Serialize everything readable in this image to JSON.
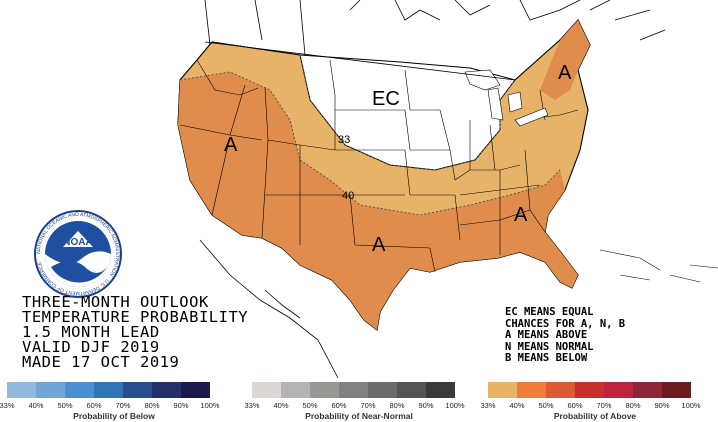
{
  "map": {
    "labels": {
      "ec": "EC",
      "a_west": "A",
      "a_southwest": "A",
      "a_southeast": "A",
      "a_northeast": "A",
      "contour_33": "33",
      "contour_40": "40"
    },
    "colors": {
      "prob_33_40": "#e6b368",
      "prob_40_50": "#e08c4c",
      "land": "#ffffff",
      "border": "#000000"
    }
  },
  "title_block": {
    "lines": [
      "THREE-MONTH OUTLOOK",
      "TEMPERATURE PROBABILITY",
      "1.5 MONTH LEAD",
      "VALID DJF 2019",
      "MADE 17 OCT 2019"
    ]
  },
  "key_block": {
    "lines": [
      "EC MEANS EQUAL",
      "CHANCES FOR A, N, B",
      "A MEANS ABOVE",
      "N MEANS NORMAL",
      "B MEANS BELOW"
    ]
  },
  "logo": {
    "text": "NOAA",
    "ring_text": "NATIONAL OCEANIC AND ATMOSPHERIC ADMINISTRATION · U.S. DEPARTMENT OF COMMERCE"
  },
  "legend": {
    "below": {
      "caption": "Probability of Below",
      "ticks": [
        "33%",
        "40%",
        "50%",
        "60%",
        "70%",
        "80%",
        "90%",
        "100%"
      ],
      "colors": [
        "#93b8dd",
        "#6fa6d7",
        "#4a8fd1",
        "#3275b6",
        "#2a4d8e",
        "#25306b",
        "#1c1a4c"
      ]
    },
    "normal": {
      "caption": "Probability of Near-Normal",
      "ticks": [
        "33%",
        "40%",
        "50%",
        "60%",
        "70%",
        "80%",
        "90%",
        "100%"
      ],
      "colors": [
        "#dcd6d6",
        "#b5b3b3",
        "#9a9797",
        "#828080",
        "#6c6a6a",
        "#555353",
        "#3a3a3a"
      ]
    },
    "above": {
      "caption": "Probability of Above",
      "ticks": [
        "33%",
        "40%",
        "50%",
        "60%",
        "70%",
        "80%",
        "90%",
        "100%"
      ],
      "colors": [
        "#e6b368",
        "#f07c3c",
        "#dc5a35",
        "#c82e2c",
        "#c0233e",
        "#8c2535",
        "#6a1c20"
      ]
    }
  }
}
